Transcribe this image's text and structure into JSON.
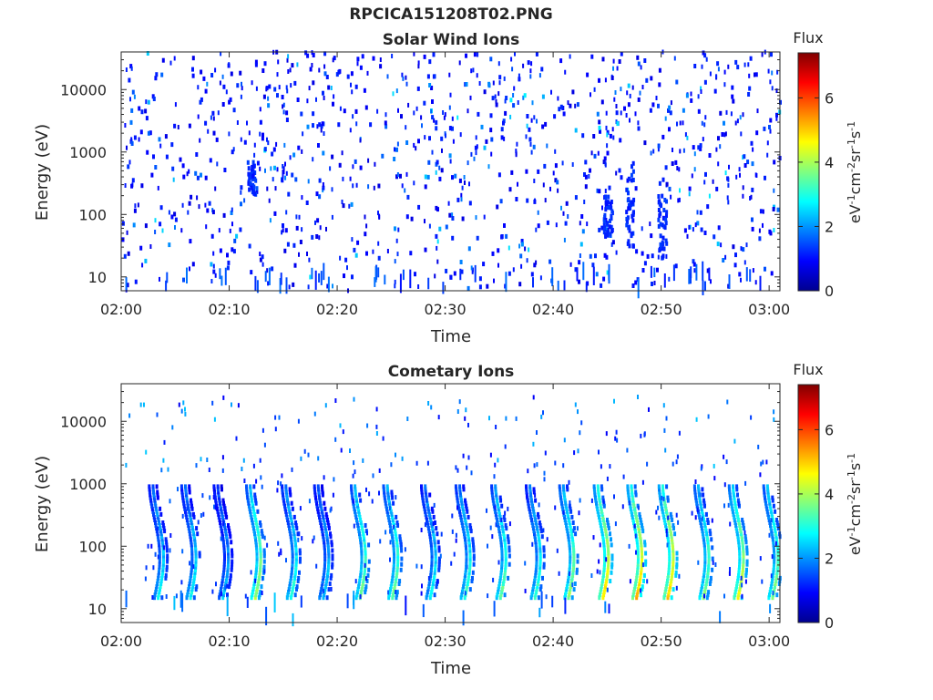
{
  "figure_title": "RPCICA151208T02.PNG",
  "chart_data": [
    {
      "type": "heatmap",
      "title": "Solar Wind Ions",
      "xlabel": "Time",
      "ylabel": "Energy (eV)",
      "x_ticks": [
        "02:00",
        "02:10",
        "02:20",
        "02:30",
        "02:40",
        "02:50",
        "03:00"
      ],
      "xlim": [
        "02:00",
        "03:01"
      ],
      "y_scale": "log",
      "y_ticks": [
        10,
        100,
        1000,
        10000
      ],
      "y_tick_labels": [
        "10",
        "100",
        "1000",
        "10000"
      ],
      "ylim": [
        6,
        40000
      ],
      "colorbar": {
        "label": "Flux",
        "unit": "eV-1cm-2sr-1s-1",
        "range": [
          0,
          7.4
        ],
        "ticks": [
          "0",
          "2",
          "4",
          "6"
        ],
        "colormap": "jet"
      },
      "background": "white",
      "features": {
        "scattered_counts_minutes": "02:00-03:01",
        "scattered_energy_range_eV": [
          6,
          40000
        ],
        "typical_flux": 1,
        "dense_patches": [
          {
            "time": "02:12",
            "energy_eV": [
              200,
              700
            ],
            "flux": 1
          },
          {
            "time": "02:45",
            "energy_eV": [
              40,
              200
            ],
            "flux": 1
          },
          {
            "time": "02:47",
            "energy_eV": [
              30,
              700
            ],
            "flux": 1
          },
          {
            "time": "02:50",
            "energy_eV": [
              20,
              200
            ],
            "flux": 1
          }
        ]
      }
    },
    {
      "type": "heatmap",
      "title": "Cometary Ions",
      "xlabel": "Time",
      "ylabel": "Energy (eV)",
      "x_ticks": [
        "02:00",
        "02:10",
        "02:20",
        "02:30",
        "02:40",
        "02:50",
        "03:00"
      ],
      "xlim": [
        "02:00",
        "03:01"
      ],
      "y_scale": "log",
      "y_ticks": [
        10,
        100,
        1000,
        10000
      ],
      "y_tick_labels": [
        "10",
        "100",
        "1000",
        "10000"
      ],
      "ylim": [
        6,
        40000
      ],
      "colorbar": {
        "label": "Flux",
        "unit": "eV-1cm-2sr-1s-1",
        "range": [
          0,
          7.4
        ],
        "ticks": [
          "0",
          "2",
          "4",
          "6"
        ],
        "colormap": "jet"
      },
      "background": "white",
      "features": {
        "streak_energy_range_eV": [
          15,
          900
        ],
        "streaks": [
          {
            "time": "02:03.3",
            "flux": 2.6
          },
          {
            "time": "02:06.3",
            "flux": 2.7
          },
          {
            "time": "02:09.3",
            "flux": 2.2
          },
          {
            "time": "02:12.3",
            "flux": 3.8
          },
          {
            "time": "02:15.6",
            "flux": 2.9
          },
          {
            "time": "02:18.6",
            "flux": 2.4
          },
          {
            "time": "02:22.0",
            "flux": 3.5
          },
          {
            "time": "02:25.0",
            "flux": 3.4
          },
          {
            "time": "02:28.5",
            "flux": 2.7
          },
          {
            "time": "02:31.7",
            "flux": 3.0
          },
          {
            "time": "02:35.0",
            "flux": 3.3
          },
          {
            "time": "02:38.2",
            "flux": 3.0
          },
          {
            "time": "02:41.3",
            "flux": 3.6
          },
          {
            "time": "02:44.5",
            "flux": 4.6
          },
          {
            "time": "02:47.6",
            "flux": 4.9
          },
          {
            "time": "02:50.5",
            "flux": 4.7
          },
          {
            "time": "02:53.8",
            "flux": 3.5
          },
          {
            "time": "02:57.0",
            "flux": 4.2
          },
          {
            "time": "03:00.2",
            "flux": 3.6
          }
        ]
      }
    }
  ]
}
